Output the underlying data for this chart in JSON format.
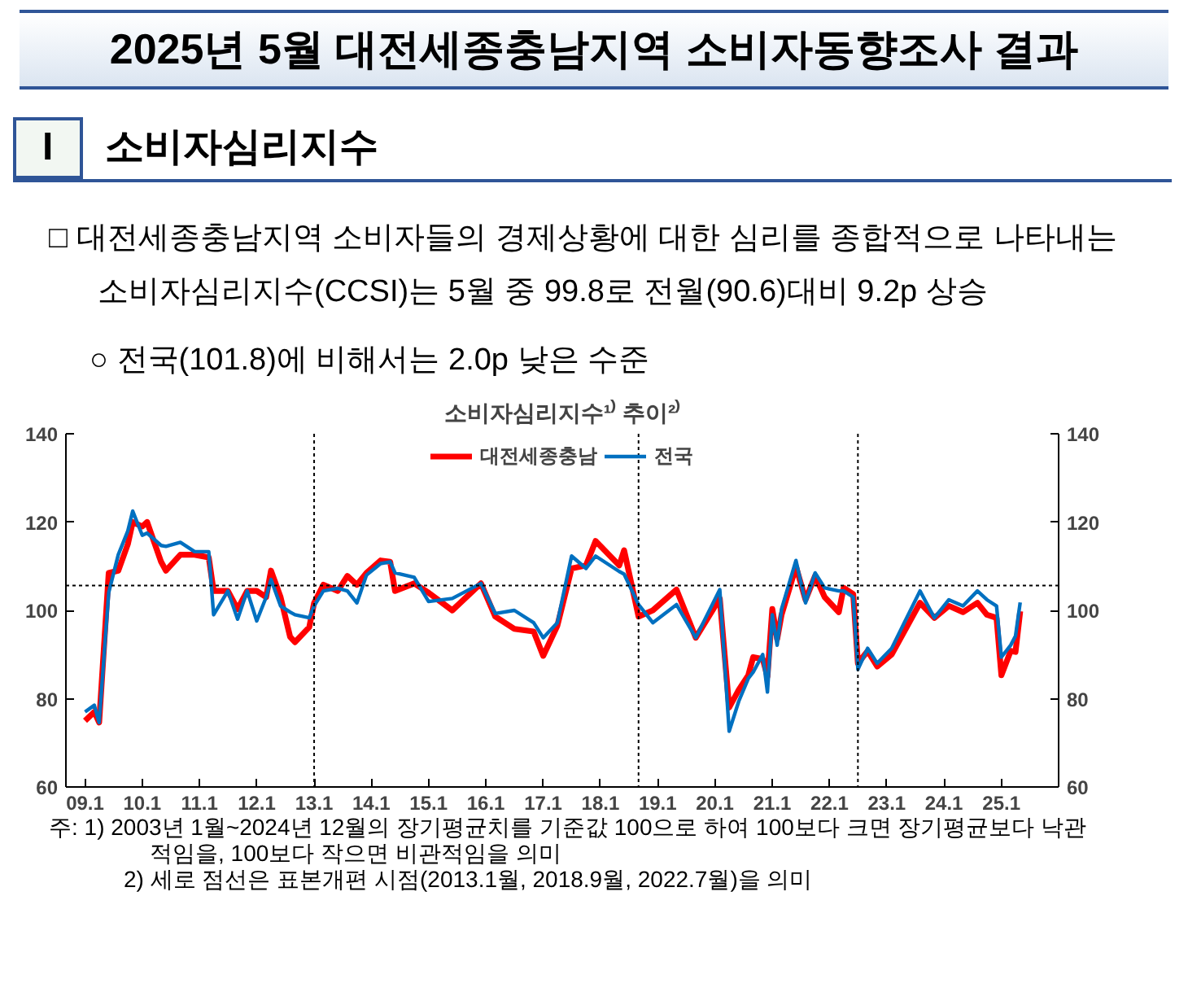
{
  "chart_data": {
    "type": "line",
    "title": "2025년 5월 대전세종충남지역 소비자동향조사 결과",
    "subtitle": "소비자심리지수¹⁾ 추이²⁾",
    "annotations": [
      "I",
      "소비자심리지수",
      "□ 대전세종충남지역 소비자들의 경제상황에 대한 심리를 종합적으로 나타내는 소비자심리지수(CCSI)는 5월 중 99.8로 전월(90.6)대비 9.2p 상승",
      "○ 전국(101.8)에 비해서는 2.0p 낮은 수준",
      "주: 1) 2003년 1월~2024년 12월의 장기평균치를 기준값 100으로 하여 100보다 크면 장기평균보다 낙관적임을, 100보다 작으면 비관적임을 의미",
      "2) 세로 점선은 표본개편 시점(2013.1월, 2018.9월, 2022.7월)을 의미"
    ],
    "x": [
      "2009-01",
      "2009-03",
      "2009-04",
      "2009-06",
      "2009-08",
      "2009-10",
      "2009-11",
      "2010-01",
      "2010-02",
      "2010-05",
      "2010-06",
      "2010-09",
      "2010-12",
      "2011-03",
      "2011-04",
      "2011-07",
      "2011-09",
      "2011-11",
      "2012-01",
      "2012-03",
      "2012-04",
      "2012-06",
      "2012-08",
      "2012-09",
      "2012-12",
      "2013-01",
      "2013-03",
      "2013-06",
      "2013-08",
      "2013-10",
      "2013-12",
      "2014-03",
      "2014-05",
      "2014-06",
      "2014-10",
      "2015-01",
      "2015-06",
      "2015-12",
      "2016-03",
      "2016-07",
      "2016-11",
      "2017-01",
      "2017-04",
      "2017-07",
      "2017-10",
      "2017-12",
      "2018-05",
      "2018-06",
      "2018-09",
      "2018-12",
      "2019-05",
      "2019-09",
      "2020-02",
      "2020-04",
      "2020-06",
      "2020-08",
      "2020-09",
      "2020-11",
      "2020-12",
      "2021-01",
      "2021-02",
      "2021-03",
      "2021-06",
      "2021-08",
      "2021-10",
      "2021-12",
      "2022-03",
      "2022-04",
      "2022-06",
      "2022-07",
      "2022-09",
      "2022-11",
      "2023-02",
      "2023-08",
      "2023-11",
      "2024-02",
      "2024-05",
      "2024-08",
      "2024-10",
      "2024-12",
      "2025-01",
      "2025-03",
      "2025-04",
      "2025-05"
    ],
    "series": [
      {
        "name": "대전세종충남",
        "color": "#ff0000",
        "values": [
          75,
          77,
          74.6,
          108.5,
          109,
          115,
          120,
          119,
          120,
          111,
          109,
          112.6,
          112.6,
          112,
          104.4,
          104.4,
          100.3,
          104.4,
          104.4,
          103,
          109,
          103,
          94,
          92.8,
          96.2,
          101.7,
          105.8,
          104.4,
          107.8,
          105.8,
          108.5,
          111.3,
          111,
          104.4,
          106.1,
          104,
          100,
          106.1,
          98.6,
          95.8,
          95.2,
          89.7,
          96.5,
          109.5,
          110.2,
          115.7,
          110.2,
          113.6,
          98.6,
          100,
          104.7,
          93.8,
          102.7,
          78,
          82,
          85.3,
          89.4,
          89,
          85,
          100.3,
          93.5,
          99,
          109.9,
          102.4,
          107.8,
          103,
          99.6,
          105.1,
          103.7,
          88,
          90.8,
          87.3,
          90,
          101.7,
          98.3,
          101,
          99.6,
          101.7,
          99,
          98.3,
          85.3,
          90.8,
          90.6,
          99.8
        ]
      },
      {
        "name": "전국",
        "color": "#0070c0",
        "values": [
          77,
          78.5,
          74.6,
          104,
          112.6,
          118,
          122.5,
          117,
          117.5,
          114.7,
          114.5,
          115.4,
          113.3,
          113.3,
          99,
          104.4,
          98,
          104.4,
          97.6,
          103,
          107,
          101,
          99.6,
          99,
          98.3,
          101,
          104.4,
          105,
          104.4,
          101.7,
          108,
          110.6,
          111,
          108.5,
          107.5,
          102,
          102.7,
          106.1,
          99.3,
          100,
          97.2,
          93.8,
          97.2,
          112.3,
          109.5,
          112.3,
          108.8,
          108.2,
          101.3,
          97.2,
          101.3,
          93.8,
          104.7,
          72.6,
          79.4,
          84.6,
          86,
          90,
          81.5,
          99,
          92.1,
          100.3,
          111.3,
          101.7,
          108.5,
          105.1,
          104.4,
          104.4,
          103,
          86.6,
          91.4,
          88,
          91.4,
          104.4,
          98.3,
          102.4,
          101,
          104.4,
          102.4,
          101,
          89.4,
          92.1,
          94.2,
          101.8
        ]
      }
    ],
    "xlim": [
      "2008-09",
      "2026-01"
    ],
    "xticks": [
      {
        "value": "2009-01",
        "label": "09.1"
      },
      {
        "value": "2010-01",
        "label": "10.1"
      },
      {
        "value": "2011-01",
        "label": "11.1"
      },
      {
        "value": "2012-01",
        "label": "12.1"
      },
      {
        "value": "2013-01",
        "label": "13.1"
      },
      {
        "value": "2014-01",
        "label": "14.1"
      },
      {
        "value": "2015-01",
        "label": "15.1"
      },
      {
        "value": "2016-01",
        "label": "16.1"
      },
      {
        "value": "2017-01",
        "label": "17.1"
      },
      {
        "value": "2018-01",
        "label": "18.1"
      },
      {
        "value": "2019-01",
        "label": "19.1"
      },
      {
        "value": "2020-01",
        "label": "20.1"
      },
      {
        "value": "2021-01",
        "label": "21.1"
      },
      {
        "value": "2022-01",
        "label": "22.1"
      },
      {
        "value": "2023-01",
        "label": "23.1"
      },
      {
        "value": "2024-01",
        "label": "24.1"
      },
      {
        "value": "2025-01",
        "label": "25.1"
      }
    ],
    "ylim": [
      60,
      140
    ],
    "yticks": [
      60,
      80,
      100,
      120,
      140
    ],
    "y2lim": [
      60,
      140
    ],
    "y2ticks": [
      60,
      80,
      100,
      120,
      140
    ],
    "ref_lines": [
      {
        "axis": "y",
        "value": 105.6,
        "label": null,
        "line_style": "dotted"
      },
      {
        "axis": "x",
        "value": "2013-01",
        "label": null,
        "line_style": "dotted"
      },
      {
        "axis": "x",
        "value": "2018-09",
        "label": null,
        "line_style": "dotted"
      },
      {
        "axis": "x",
        "value": "2022-07",
        "label": null,
        "line_style": "dotted"
      }
    ],
    "legend": "top",
    "grid": false,
    "line_style": "solid"
  }
}
